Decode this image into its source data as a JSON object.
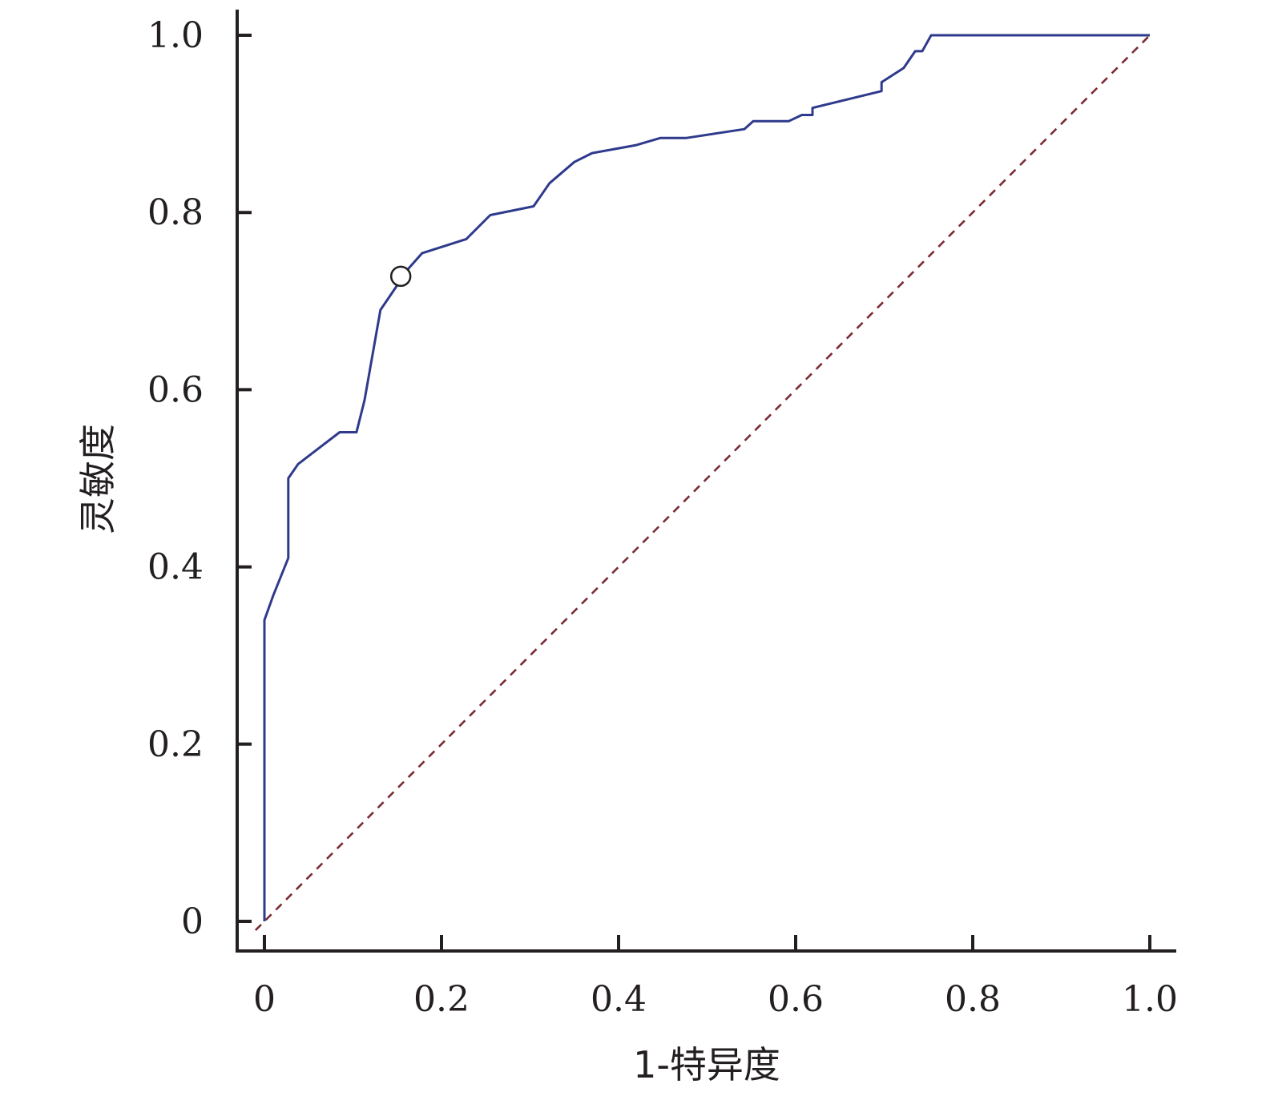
{
  "chart_data": {
    "type": "line",
    "xlabel": "1-特异度",
    "ylabel": "灵敏度",
    "xlim": [
      0,
      1
    ],
    "ylim": [
      0,
      1
    ],
    "x_ticks": [
      "0",
      "0.2",
      "0.4",
      "0.6",
      "0.8",
      "1.0"
    ],
    "y_ticks": [
      "0",
      "0.2",
      "0.4",
      "0.6",
      "0.8",
      "1.0"
    ],
    "grid": false,
    "legend": "none",
    "series": [
      {
        "color": "#2e3a8c",
        "style": "solid",
        "x": [
          0,
          0,
          0.01,
          0.027,
          0.027,
          0.038,
          0.085,
          0.104,
          0.113,
          0.131,
          0.163,
          0.178,
          0.228,
          0.255,
          0.304,
          0.322,
          0.35,
          0.37,
          0.42,
          0.447,
          0.476,
          0.542,
          0.552,
          0.592,
          0.607,
          0.619,
          0.619,
          0.697,
          0.697,
          0.722,
          0.735,
          0.743,
          0.753,
          1.0
        ],
        "y": [
          0,
          0.34,
          0.368,
          0.41,
          0.5,
          0.516,
          0.552,
          0.552,
          0.588,
          0.69,
          0.737,
          0.754,
          0.77,
          0.797,
          0.807,
          0.833,
          0.857,
          0.867,
          0.876,
          0.884,
          0.884,
          0.894,
          0.903,
          0.903,
          0.91,
          0.91,
          0.918,
          0.937,
          0.947,
          0.963,
          0.982,
          0.982,
          1.0,
          1.0
        ]
      },
      {
        "color": "#7b2b33",
        "style": "dashed",
        "x": [
          -0.01,
          1.0
        ],
        "y": [
          -0.01,
          1.0
        ]
      }
    ],
    "marker": {
      "x": 0.154,
      "y": 0.728,
      "shape": "open-circle"
    }
  }
}
